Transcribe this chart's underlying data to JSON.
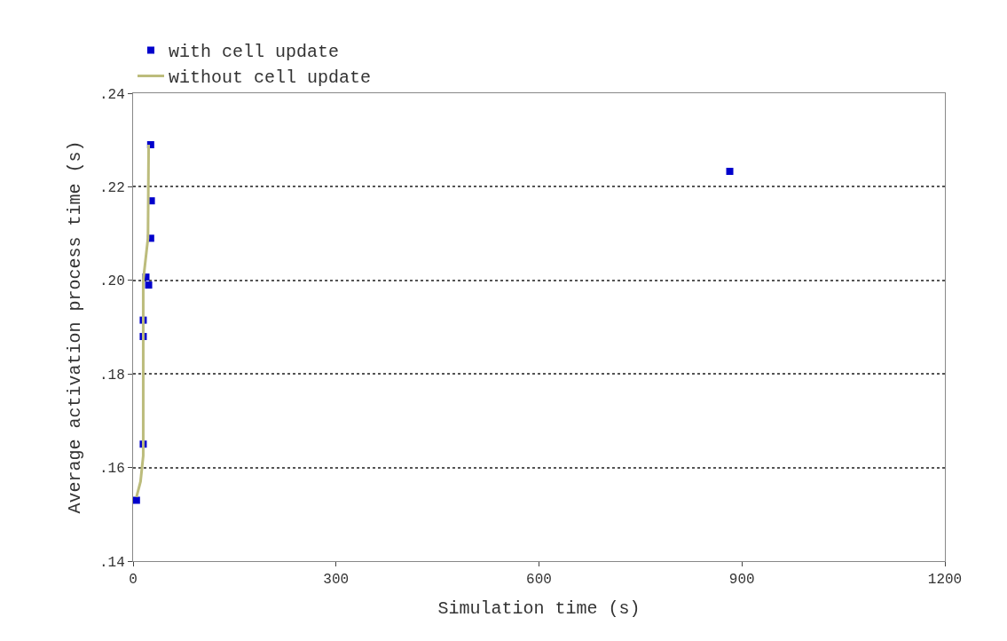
{
  "chart_data": {
    "type": "scatter",
    "xlabel": "Simulation time (s)",
    "ylabel": "Average activation process time (s)",
    "xlim": [
      0,
      1200
    ],
    "xticks": [
      0,
      300,
      600,
      900,
      1200
    ],
    "ylim": [
      0.14,
      0.24
    ],
    "yticks": [
      {
        "value": 0.14,
        "label": ".14"
      },
      {
        "value": 0.16,
        "label": ".16"
      },
      {
        "value": 0.18,
        "label": ".18"
      },
      {
        "value": 0.2,
        "label": ".20"
      },
      {
        "value": 0.22,
        "label": ".22"
      },
      {
        "value": 0.24,
        "label": ".24"
      }
    ],
    "grid": "y",
    "legend": "top left",
    "series": [
      {
        "name": "with cell update",
        "marker": "square",
        "color": "#0000cc",
        "x": [
          5,
          15,
          15,
          15,
          19,
          23,
          26,
          27,
          26,
          882
        ],
        "values": [
          0.153,
          0.165,
          0.188,
          0.1915,
          0.2007,
          0.199,
          0.209,
          0.217,
          0.229,
          0.2233
        ]
      },
      {
        "name": "without cell update",
        "type": "line",
        "marker": "none",
        "color": "#bcbc7c",
        "x": [
          5,
          11,
          15,
          15,
          22,
          23
        ],
        "values": [
          0.1537,
          0.157,
          0.1625,
          0.2,
          0.209,
          0.229
        ]
      }
    ]
  }
}
